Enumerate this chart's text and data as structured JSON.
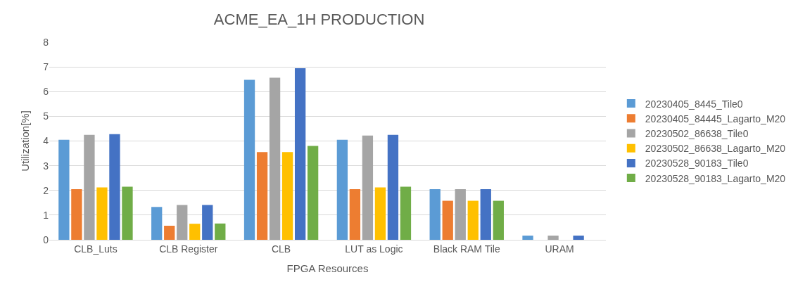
{
  "chart_data": {
    "type": "bar",
    "title": "ACME_EA_1H PRODUCTION",
    "xlabel": "FPGA Resources",
    "ylabel": "Utilization[%]",
    "categories": [
      "CLB_Luts",
      "CLB Register",
      "CLB",
      "LUT as Logic",
      "Black RAM Tile",
      "URAM"
    ],
    "series": [
      {
        "name": "20230405_8445_Tile0",
        "color": "#5b9bd5",
        "values": [
          4.05,
          1.33,
          6.48,
          4.05,
          2.05,
          0.17
        ]
      },
      {
        "name": "20230405_84445_Lagarto_M20",
        "color": "#ed7d31",
        "values": [
          2.05,
          0.57,
          3.55,
          2.05,
          1.58,
          0
        ]
      },
      {
        "name": "20230502_86638_Tile0",
        "color": "#a5a5a5",
        "values": [
          4.25,
          1.41,
          6.56,
          4.22,
          2.05,
          0.17
        ]
      },
      {
        "name": "20230502_86638_Lagarto_M20",
        "color": "#ffc000",
        "values": [
          2.12,
          0.65,
          3.55,
          2.12,
          1.58,
          0
        ]
      },
      {
        "name": "20230528_90183_Tile0",
        "color": "#4472c4",
        "values": [
          4.28,
          1.41,
          6.95,
          4.25,
          2.05,
          0.17
        ]
      },
      {
        "name": "20230528_90183_Lagarto_M20",
        "color": "#70ad47",
        "values": [
          2.15,
          0.66,
          3.8,
          2.15,
          1.58,
          0
        ]
      }
    ],
    "ylim": [
      0,
      8
    ],
    "yticks": [
      0,
      1,
      2,
      3,
      4,
      5,
      6,
      7,
      8
    ],
    "grid": "y",
    "legend": "right"
  }
}
